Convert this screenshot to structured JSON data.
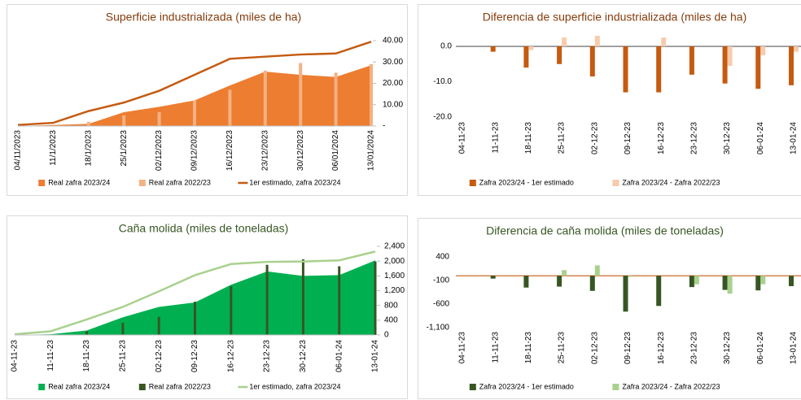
{
  "chart_data": [
    {
      "type": "combo",
      "title": "Superficie industrializada (miles de ha)",
      "title_color": "#843c0c",
      "y_axis_side": "right",
      "categories": [
        "04/11/2023",
        "11/1/2023",
        "18/1/2023",
        "25/1/2023",
        "02/12/2023",
        "09/12/2023",
        "16/12/2023",
        "23/12/2023",
        "30/12/2023",
        "06/01/2024",
        "13/01/2024"
      ],
      "series": [
        {
          "name": "Real zafra 2023/24",
          "type": "area",
          "color": "#ed7d31",
          "values": [
            0,
            0.5,
            1,
            6.5,
            9,
            12,
            19,
            25.5,
            24,
            23,
            28.5
          ]
        },
        {
          "name": "Real zafra 2022/23",
          "type": "bar",
          "color": "#f4b183",
          "values": [
            0,
            0,
            2,
            5,
            6.5,
            12,
            17,
            26,
            29.5,
            25,
            29
          ]
        },
        {
          "name": "1er estimado, zafra 2023/24",
          "type": "line",
          "color": "#c55a11",
          "values": [
            0.5,
            1.5,
            7,
            11,
            16.5,
            24,
            31.5,
            32.5,
            33.5,
            34,
            39.5
          ]
        }
      ],
      "ylim": [
        0,
        40
      ],
      "yticks": [
        {
          "value": 0,
          "label": "-"
        },
        {
          "value": 10,
          "label": "10.00"
        },
        {
          "value": 20,
          "label": "20.00"
        },
        {
          "value": 30,
          "label": "30.00"
        },
        {
          "value": 40,
          "label": "40.00"
        }
      ]
    },
    {
      "type": "bar",
      "title": "Diferencia de superficie industrializada (miles de ha)",
      "title_color": "#843c0c",
      "y_axis_side": "left",
      "zero_line_color": "#595959",
      "categories": [
        "04-11-23",
        "11-11-23",
        "18-11-23",
        "25-11-23",
        "02-12-23",
        "09-12-23",
        "16-12-23",
        "23-12-23",
        "30-12-23",
        "06-01-24",
        "13-01-24"
      ],
      "series": [
        {
          "name": "Zafra 2023/24 - 1er estimado",
          "color": "#c55a11",
          "values": [
            0,
            -1.5,
            -6,
            -5,
            -8.5,
            -13,
            -13,
            -8,
            -10.5,
            -12,
            -11
          ]
        },
        {
          "name": "Zafra 2023/24 - Zafra 2022/23",
          "color": "#f8cbad",
          "values": [
            0,
            0,
            -1,
            2.5,
            3,
            0,
            2.5,
            0,
            -5.5,
            -2.5,
            -1.5
          ]
        }
      ],
      "ylim": [
        -20,
        3
      ],
      "yticks": [
        {
          "value": 0,
          "label": "0.0"
        },
        {
          "value": -10,
          "label": "-10.0"
        },
        {
          "value": -20,
          "label": "-20.0"
        }
      ]
    },
    {
      "type": "combo",
      "title": "Caña molida (miles de toneladas)",
      "title_color": "#375623",
      "y_axis_side": "right",
      "categories": [
        "04-11-23",
        "11-11-23",
        "18-11-23",
        "25-11-23",
        "02-12-23",
        "09-12-23",
        "16-12-23",
        "23-12-23",
        "30-12-23",
        "06-01-24",
        "13-01-24"
      ],
      "series": [
        {
          "name": "Real zafra 2023/24",
          "type": "area",
          "color": "#00b050",
          "values": [
            0,
            20,
            120,
            480,
            760,
            880,
            1360,
            1720,
            1600,
            1620,
            2020
          ]
        },
        {
          "name": "Real zafra 2022/23",
          "type": "bar",
          "color": "#375623",
          "values": [
            0,
            0,
            100,
            330,
            490,
            900,
            1320,
            1900,
            2050,
            1860,
            1990
          ]
        },
        {
          "name": "1er estimado, zafra 2023/24",
          "type": "line",
          "color": "#a9d18e",
          "values": [
            20,
            100,
            420,
            760,
            1180,
            1620,
            1920,
            1980,
            1990,
            2020,
            2260
          ]
        }
      ],
      "ylim": [
        0,
        2400
      ],
      "yticks": [
        0,
        400,
        800,
        {
          "value": 1200,
          "label": "1,200"
        },
        {
          "value": 1600,
          "label": "1,600"
        },
        {
          "value": 2000,
          "label": "2,000"
        },
        {
          "value": 2400,
          "label": "2,400"
        }
      ]
    },
    {
      "type": "bar",
      "title": "Diferencia de caña molida (miles de toneladas)",
      "title_color": "#375623",
      "y_axis_side": "left",
      "zero_line_color": "#c55a11",
      "categories": [
        "04-11-23",
        "11-11-23",
        "18-11-23",
        "25-11-23",
        "02-12-23",
        "09-12-23",
        "16-12-23",
        "23-12-23",
        "30-12-23",
        "06-01-24",
        "13-01-24"
      ],
      "series": [
        {
          "name": "Zafra 2023/24 - 1er estimado",
          "color": "#375623",
          "values": [
            0,
            -60,
            -250,
            -230,
            -320,
            -760,
            -640,
            -240,
            -300,
            -310,
            -220
          ]
        },
        {
          "name": "Zafra 2023/24 - Zafra 2022/23",
          "color": "#a9d18e",
          "values": [
            0,
            0,
            0,
            120,
            220,
            -20,
            0,
            -180,
            -380,
            -180,
            0
          ]
        }
      ],
      "ylim": [
        -1100,
        400
      ],
      "yticks": [
        400,
        -100,
        -600,
        {
          "value": -1100,
          "label": "-1,100"
        }
      ]
    }
  ]
}
